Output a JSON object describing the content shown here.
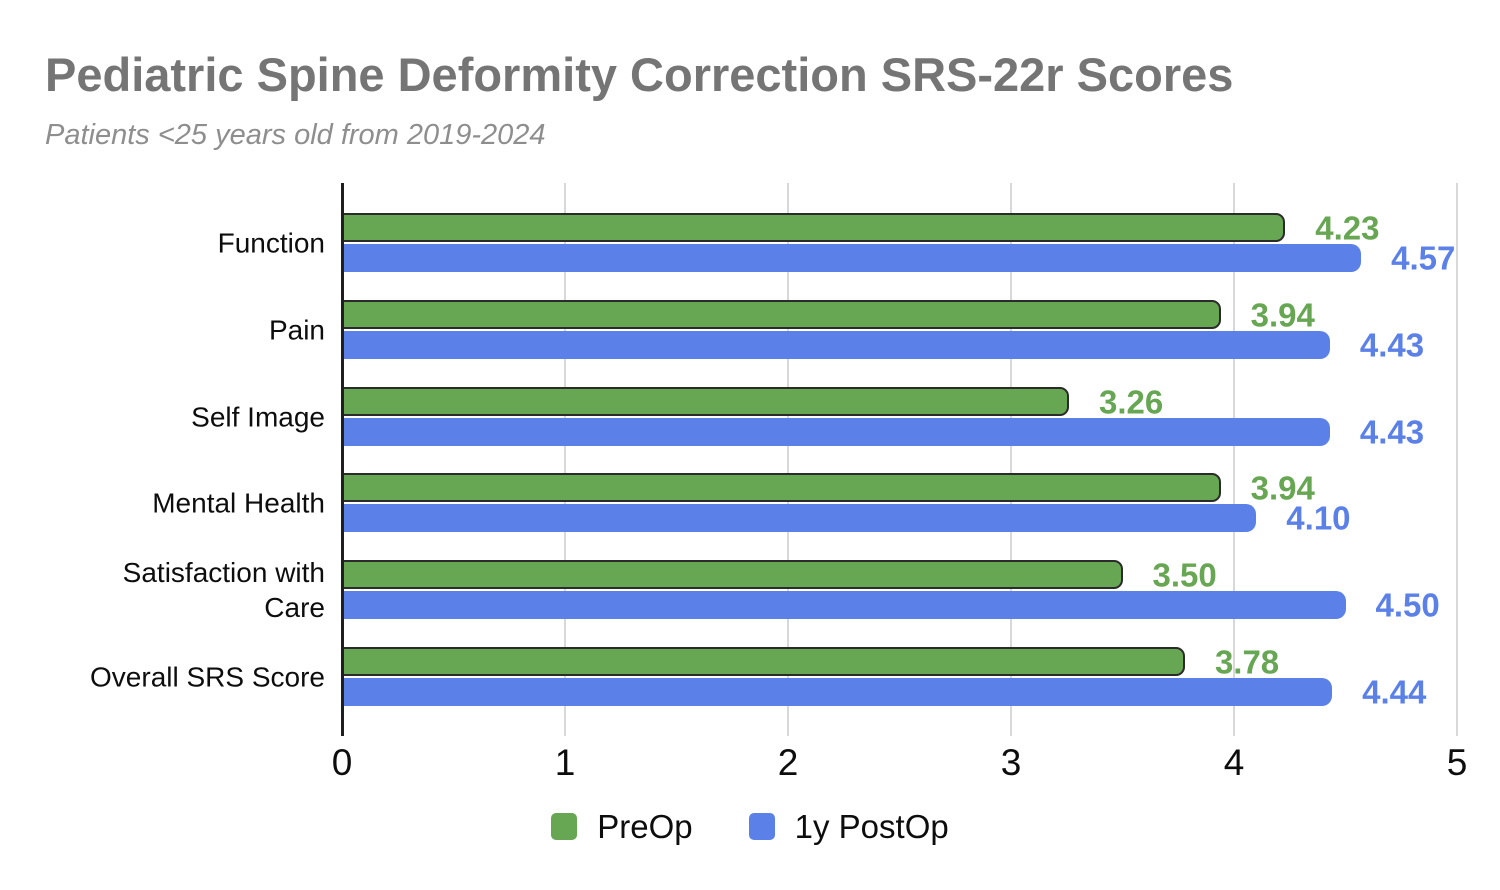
{
  "title": "Pediatric Spine Deformity Correction SRS-22r Scores",
  "subtitle": "Patients <25 years old from 2019-2024",
  "colors": {
    "title_text": "#757575",
    "subtitle_text": "#8e8e8e",
    "axis_line": "#1f1f1f",
    "gridline": "#d8d8d8",
    "preop_green": "#67a653",
    "preop_border": "#2b2b2b",
    "postop_blue": "#5b81e8",
    "label_text": "#0d0d0d"
  },
  "chart_data": {
    "type": "bar",
    "orientation": "horizontal",
    "title": "Pediatric Spine Deformity Correction SRS-22r Scores",
    "subtitle": "Patients <25 years old from 2019-2024",
    "categories": [
      "Function",
      "Pain",
      "Self Image",
      "Mental Health",
      "Satisfaction with Care",
      "Overall SRS Score"
    ],
    "series": [
      {
        "name": "PreOp",
        "color": "#67a653",
        "values": [
          4.23,
          3.94,
          3.26,
          3.94,
          3.5,
          3.78
        ],
        "labels": [
          "4.23",
          "3.94",
          "3.26",
          "3.94",
          "3.50",
          "3.78"
        ]
      },
      {
        "name": "1y PostOp",
        "color": "#5b81e8",
        "values": [
          4.57,
          4.43,
          4.43,
          4.1,
          4.5,
          4.44
        ],
        "labels": [
          "4.57",
          "4.43",
          "4.43",
          "4.10",
          "4.50",
          "4.44"
        ]
      }
    ],
    "xlim": [
      0,
      5
    ],
    "x_ticks": [
      "0",
      "1",
      "2",
      "3",
      "4",
      "5"
    ],
    "grid": true,
    "legend_position": "bottom",
    "value_labels_shown": true
  }
}
